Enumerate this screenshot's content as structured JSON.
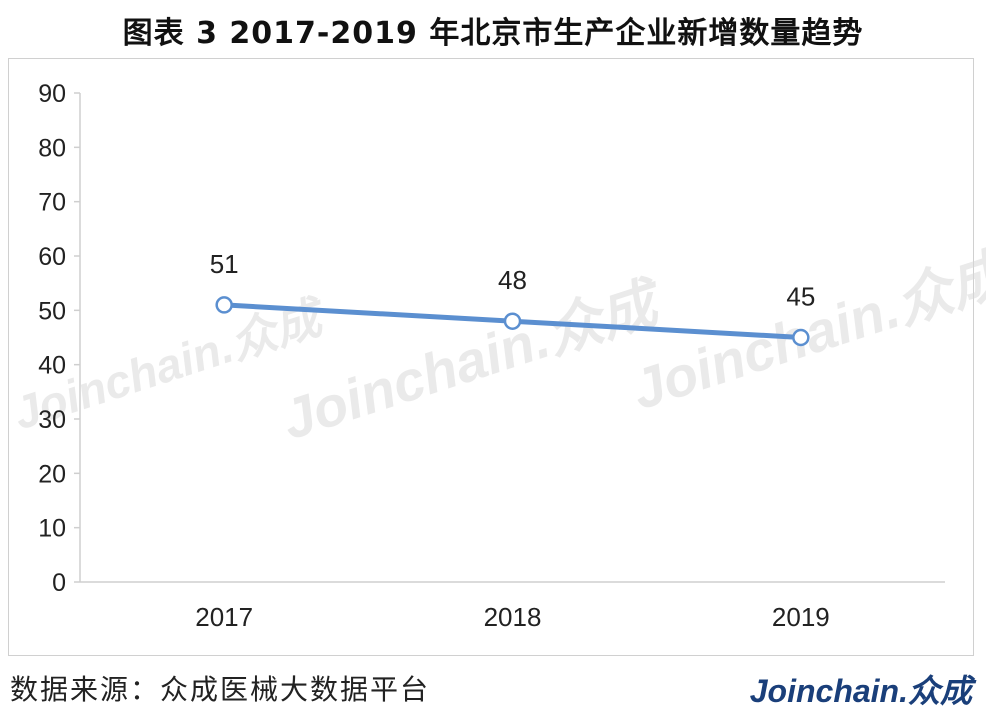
{
  "header": {
    "title": "图表 3   2017-2019 年北京市生产企业新增数量趋势"
  },
  "footer": {
    "source": "数据来源：众成医械大数据平台",
    "logo": "Joinchain.众成"
  },
  "watermark": {
    "text": "Joinchain.众成"
  },
  "colors": {
    "line": "#5b8fd0",
    "axis": "#cfcfcf",
    "marker_fill": "#ffffff"
  },
  "chart_data": {
    "type": "line",
    "categories": [
      "2017",
      "2018",
      "2019"
    ],
    "series": [
      {
        "values": [
          51,
          48,
          45
        ]
      }
    ],
    "data_labels": [
      "51",
      "48",
      "45"
    ],
    "yticks": [
      "0",
      "10",
      "20",
      "30",
      "40",
      "50",
      "60",
      "70",
      "80",
      "90"
    ],
    "ylim": [
      0,
      90
    ],
    "xlabel": "",
    "ylabel": "",
    "grid": false,
    "legend": "none"
  }
}
